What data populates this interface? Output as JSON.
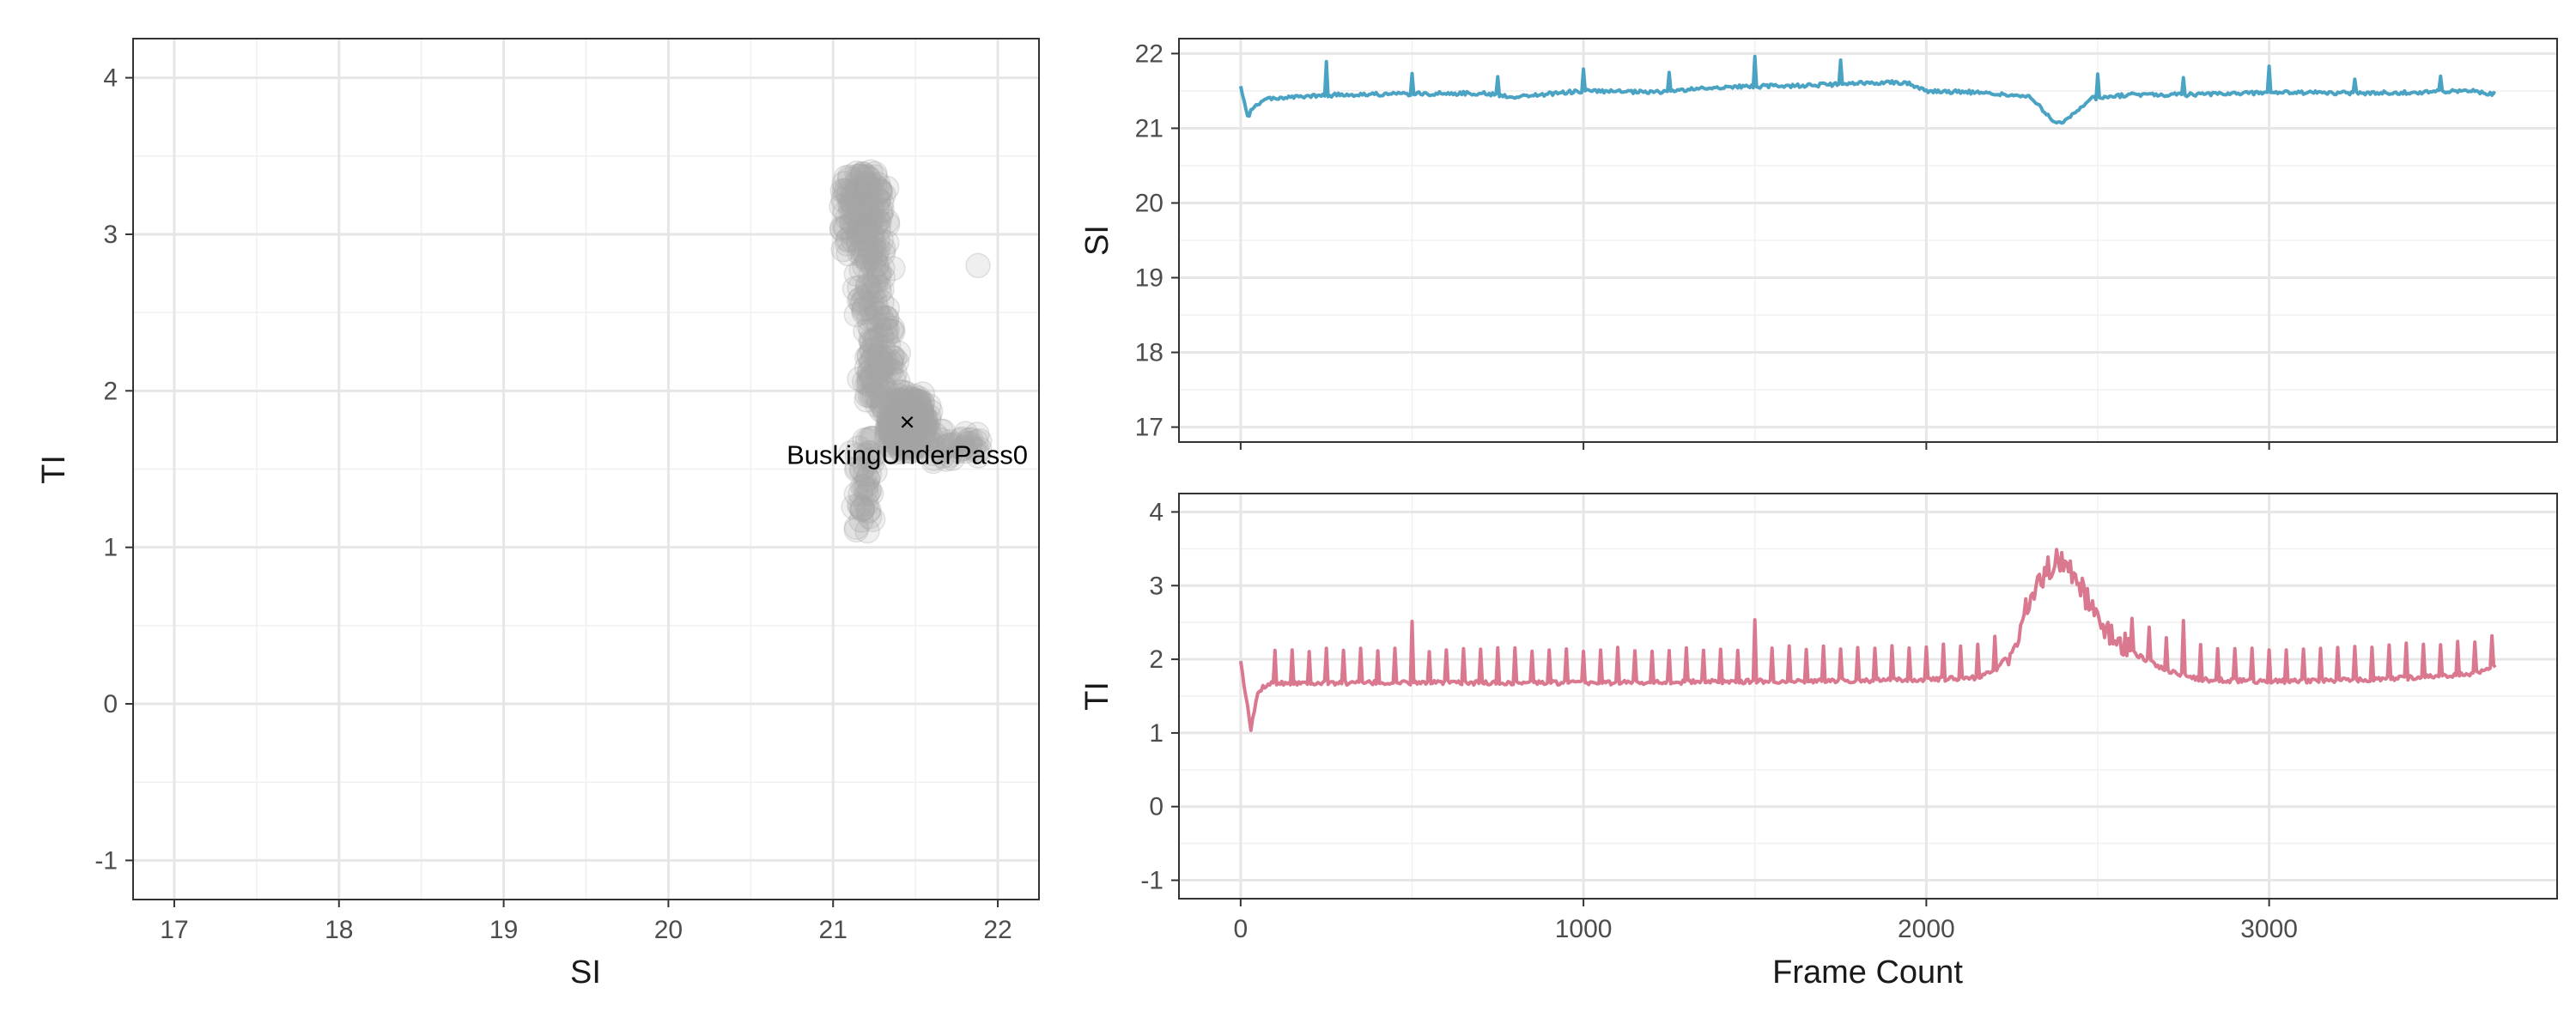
{
  "chart_data": [
    {
      "panel": "scatter",
      "type": "scatter",
      "xlabel": "SI",
      "ylabel": "TI",
      "xlim": [
        16.75,
        22.25
      ],
      "ylim": [
        -1.25,
        4.25
      ],
      "xticks": [
        "17",
        "18",
        "19",
        "20",
        "21",
        "22"
      ],
      "yticks": [
        "-1",
        "0",
        "1",
        "2",
        "3",
        "4"
      ],
      "point_color": "#A6A6A6",
      "marker": {
        "x": 21.45,
        "y": 1.8,
        "symbol": "×"
      },
      "annotation": {
        "text": "BuskingUnderPass0",
        "x": 21.45,
        "y": 1.6
      },
      "points_summary": {
        "si_range": [
          21.0,
          21.9
        ],
        "ti_range": [
          1.1,
          3.4
        ],
        "dense_center": [
          21.45,
          1.8
        ]
      },
      "grid": true
    },
    {
      "panel": "si-series",
      "type": "line",
      "ylabel": "SI",
      "xlim": [
        -180,
        3840
      ],
      "ylim": [
        16.8,
        22.2
      ],
      "yticks": [
        "17",
        "18",
        "19",
        "20",
        "21",
        "22"
      ],
      "xtick_values": [
        0,
        1000,
        2000,
        3000
      ],
      "color": "#4BA3C3",
      "x_range": [
        0,
        3660
      ],
      "baseline_points": [
        [
          0,
          21.55
        ],
        [
          20,
          21.15
        ],
        [
          40,
          21.3
        ],
        [
          80,
          21.4
        ],
        [
          300,
          21.45
        ],
        [
          700,
          21.47
        ],
        [
          800,
          21.42
        ],
        [
          1000,
          21.5
        ],
        [
          1200,
          21.48
        ],
        [
          1400,
          21.55
        ],
        [
          1700,
          21.58
        ],
        [
          1900,
          21.62
        ],
        [
          1950,
          21.6
        ],
        [
          2000,
          21.5
        ],
        [
          2150,
          21.48
        ],
        [
          2300,
          21.42
        ],
        [
          2350,
          21.2
        ],
        [
          2380,
          21.05
        ],
        [
          2420,
          21.15
        ],
        [
          2480,
          21.4
        ],
        [
          2600,
          21.45
        ],
        [
          2800,
          21.45
        ],
        [
          3000,
          21.48
        ],
        [
          3300,
          21.47
        ],
        [
          3600,
          21.5
        ],
        [
          3660,
          21.45
        ]
      ],
      "spikes": [
        [
          250,
          0.45
        ],
        [
          500,
          0.25
        ],
        [
          750,
          0.25
        ],
        [
          1000,
          0.3
        ],
        [
          1250,
          0.25
        ],
        [
          1500,
          0.4
        ],
        [
          1750,
          0.3
        ],
        [
          2500,
          0.3
        ],
        [
          2750,
          0.25
        ],
        [
          3000,
          0.35
        ],
        [
          3250,
          0.2
        ],
        [
          3500,
          0.2
        ]
      ],
      "grid": true
    },
    {
      "panel": "ti-series",
      "type": "line",
      "xlabel": "Frame Count",
      "ylabel": "TI",
      "xlim": [
        -180,
        3840
      ],
      "ylim": [
        -1.25,
        4.25
      ],
      "xticks": [
        "0",
        "1000",
        "2000",
        "3000"
      ],
      "xtick_values": [
        0,
        1000,
        2000,
        3000
      ],
      "yticks": [
        "-1",
        "0",
        "1",
        "2",
        "3",
        "4"
      ],
      "color": "#D9788F",
      "x_range": [
        0,
        3660
      ],
      "baseline_points": [
        [
          0,
          1.95
        ],
        [
          15,
          1.5
        ],
        [
          30,
          1.05
        ],
        [
          50,
          1.55
        ],
        [
          80,
          1.68
        ],
        [
          500,
          1.68
        ],
        [
          1000,
          1.68
        ],
        [
          1500,
          1.7
        ],
        [
          2000,
          1.72
        ],
        [
          2150,
          1.75
        ],
        [
          2200,
          1.85
        ],
        [
          2250,
          2.1
        ],
        [
          2300,
          2.8
        ],
        [
          2350,
          3.2
        ],
        [
          2380,
          3.35
        ],
        [
          2420,
          3.25
        ],
        [
          2450,
          3.0
        ],
        [
          2500,
          2.5
        ],
        [
          2600,
          2.1
        ],
        [
          2700,
          1.85
        ],
        [
          2800,
          1.72
        ],
        [
          3000,
          1.7
        ],
        [
          3300,
          1.72
        ],
        [
          3600,
          1.8
        ],
        [
          3660,
          1.9
        ]
      ],
      "spike_interval": 50,
      "spike_height": 0.45,
      "big_spikes": [
        [
          500,
          0.85
        ],
        [
          1500,
          0.85
        ],
        [
          2750,
          0.75
        ]
      ],
      "grid": true
    }
  ]
}
